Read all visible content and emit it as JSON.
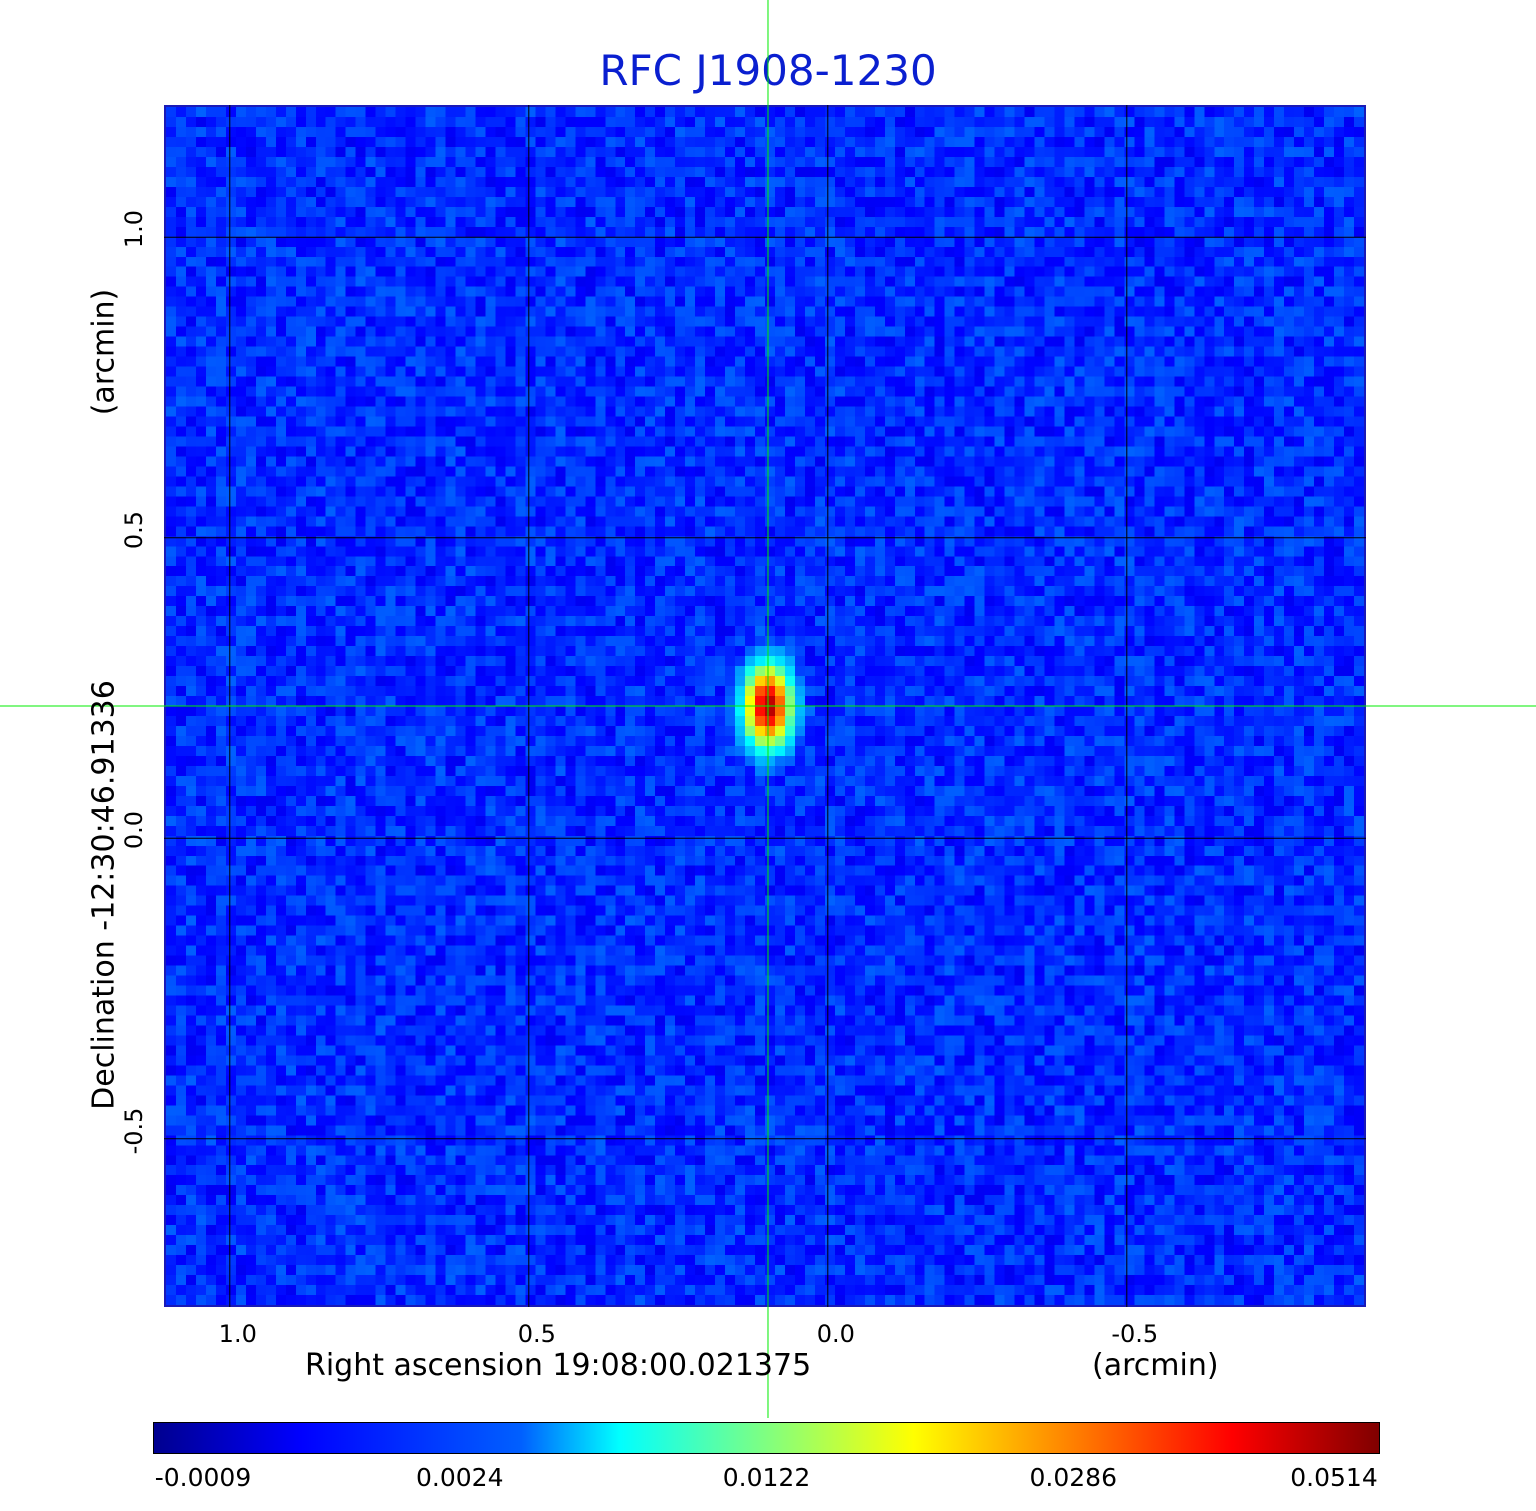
{
  "chart_data": {
    "type": "heatmap",
    "title": "RFC J1908-1230",
    "title_color": "#0a1fd0",
    "xlabel": "Right ascension  19:08:00.021375",
    "x_unit": "(arcmin)",
    "ylabel": "Declination  -12:30:46.91336",
    "y_unit": "(arcmin)",
    "xlim": [
      1.11,
      -0.9
    ],
    "ylim": [
      -0.78,
      1.22
    ],
    "x_ticks": [
      {
        "value": 1.0,
        "label": "1.0"
      },
      {
        "value": 0.5,
        "label": "0.5"
      },
      {
        "value": 0.0,
        "label": "0.0"
      },
      {
        "value": -0.5,
        "label": "-0.5"
      }
    ],
    "y_ticks": [
      {
        "value": 1.0,
        "label": "1.0"
      },
      {
        "value": 0.5,
        "label": "0.5"
      },
      {
        "value": 0.0,
        "label": "0.0"
      },
      {
        "value": -0.5,
        "label": "-0.5"
      }
    ],
    "grid": true,
    "grid_color": "#000000",
    "colormap": "jet",
    "colorbar": {
      "placement": "bottom",
      "ticks": [
        "-0.0009",
        "0.0024",
        "0.0122",
        "0.0286",
        "0.0514"
      ],
      "min": -0.0009,
      "max": 0.0514
    },
    "source": {
      "x": 0.1,
      "y": 0.22,
      "peak": 0.0514,
      "label": ""
    },
    "crosshair": {
      "x": 0.1,
      "y": 0.22,
      "color": "#00ee00"
    },
    "background_level": 0.0008
  }
}
